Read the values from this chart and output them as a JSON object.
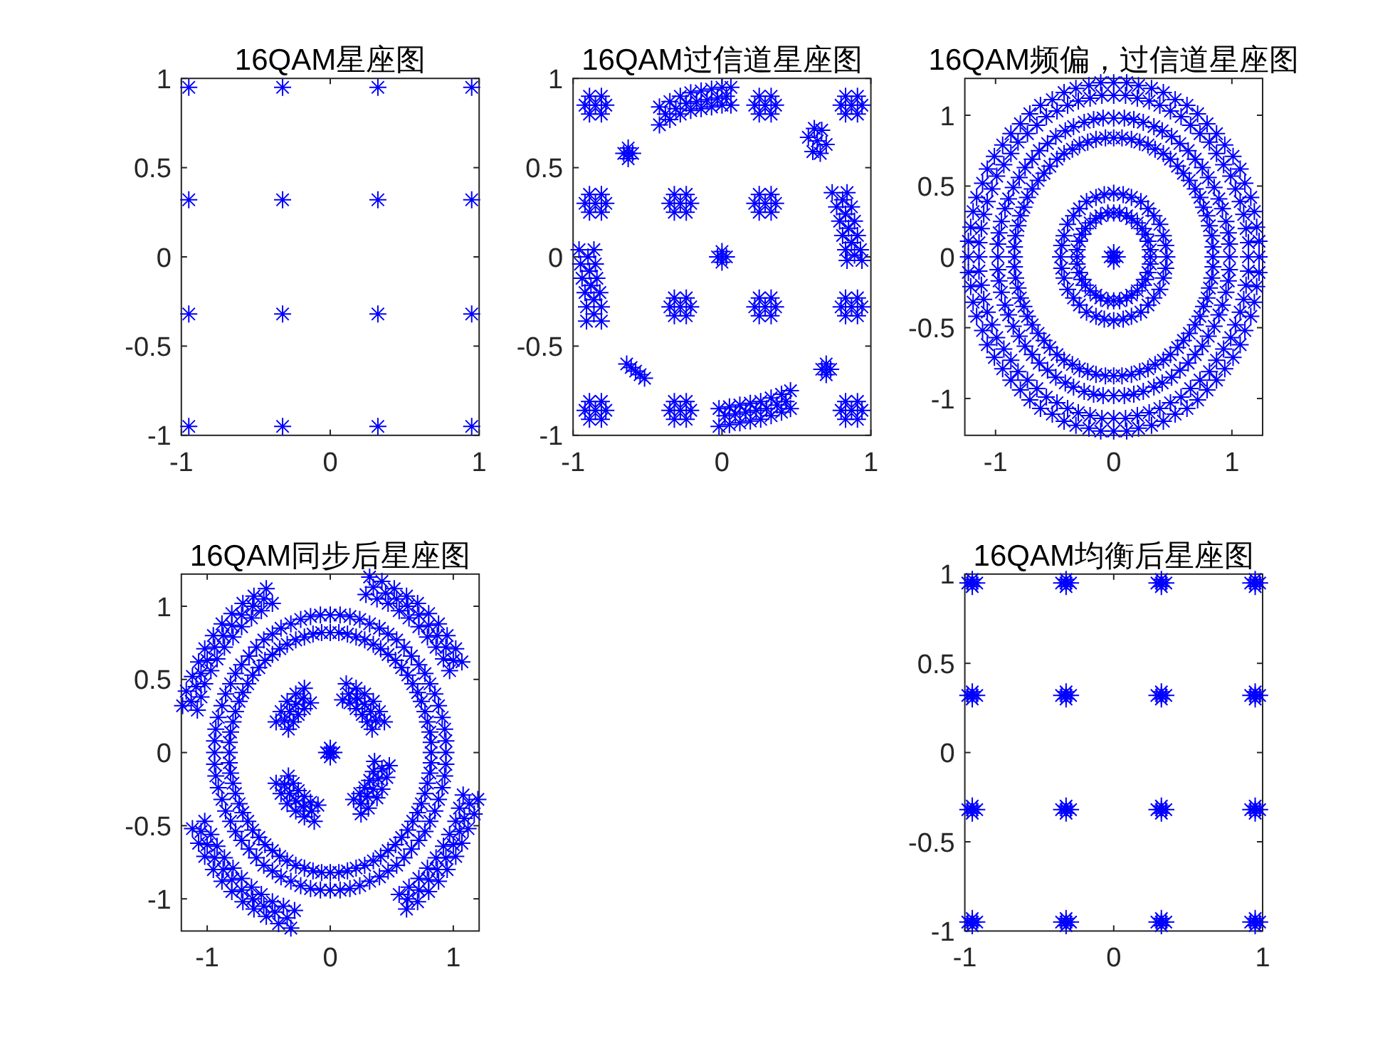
{
  "chart_data": [
    {
      "type": "scatter",
      "title": "16QAM星座图",
      "xlim": [
        -1,
        1
      ],
      "ylim": [
        -1,
        1
      ],
      "xticks": [
        -1,
        0,
        1
      ],
      "yticks": [
        -1,
        -0.5,
        0,
        0.5,
        1
      ],
      "marker": "cross",
      "series": [
        {
          "color": "#0000ff",
          "x": [
            -0.95,
            -0.32,
            0.32,
            0.95,
            -0.95,
            -0.32,
            0.32,
            0.95,
            -0.95,
            -0.32,
            0.32,
            0.95,
            -0.95,
            -0.32,
            0.32,
            0.95
          ],
          "values": [
            0.95,
            0.95,
            0.95,
            0.95,
            0.32,
            0.32,
            0.32,
            0.32,
            -0.32,
            -0.32,
            -0.32,
            -0.32,
            -0.95,
            -0.95,
            -0.95,
            -0.95
          ]
        }
      ]
    },
    {
      "type": "scatter",
      "title": "16QAM过信道星座图",
      "xlim": [
        -1,
        1
      ],
      "ylim": [
        -1,
        1
      ],
      "xticks": [
        -1,
        0,
        1
      ],
      "yticks": [
        -1,
        -0.5,
        0,
        0.5,
        1
      ],
      "marker": "cross",
      "series": [
        {
          "color": "#0000ff",
          "x": [
            -0.85,
            -0.78,
            -0.92,
            -0.81,
            -0.89,
            -0.81,
            -0.89,
            0.29,
            0.36,
            0.22,
            0.33,
            0.25,
            0.33,
            0.25,
            0.87,
            0.94,
            0.8,
            0.91,
            0.83,
            0.91,
            0.83,
            -0.85,
            -0.78,
            -0.92,
            -0.81,
            -0.89,
            -0.81,
            -0.89,
            -0.28,
            -0.21,
            -0.35,
            -0.24,
            -0.32,
            -0.24,
            -0.32,
            0.29,
            0.36,
            0.22,
            0.33,
            0.25,
            0.33,
            0.25,
            -0.28,
            -0.21,
            -0.35,
            -0.24,
            -0.32,
            -0.24,
            -0.32,
            0.29,
            0.36,
            0.22,
            0.33,
            0.25,
            0.33,
            0.25,
            0.87,
            0.94,
            0.8,
            0.91,
            0.83,
            0.91,
            0.83,
            -0.85,
            -0.78,
            -0.92,
            -0.81,
            -0.89,
            -0.81,
            -0.89,
            -0.28,
            -0.21,
            -0.35,
            -0.24,
            -0.32,
            -0.24,
            -0.32,
            0.87,
            0.94,
            0.8,
            0.91,
            0.83,
            0.91,
            0.83
          ],
          "values": [
            0.85,
            0.85,
            0.85,
            0.9,
            0.9,
            0.8,
            0.8,
            0.85,
            0.85,
            0.85,
            0.9,
            0.9,
            0.8,
            0.8,
            0.85,
            0.85,
            0.85,
            0.9,
            0.9,
            0.8,
            0.8,
            0.3,
            0.3,
            0.3,
            0.35,
            0.35,
            0.25,
            0.25,
            0.3,
            0.3,
            0.3,
            0.35,
            0.35,
            0.25,
            0.25,
            0.3,
            0.3,
            0.3,
            0.35,
            0.35,
            0.25,
            0.25,
            -0.28,
            -0.28,
            -0.28,
            -0.23,
            -0.23,
            -0.33,
            -0.33,
            -0.28,
            -0.28,
            -0.28,
            -0.23,
            -0.23,
            -0.33,
            -0.33,
            -0.28,
            -0.28,
            -0.28,
            -0.23,
            -0.23,
            -0.33,
            -0.33,
            -0.86,
            -0.86,
            -0.86,
            -0.81,
            -0.81,
            -0.91,
            -0.91,
            -0.86,
            -0.86,
            -0.86,
            -0.81,
            -0.81,
            -0.91,
            -0.91,
            -0.86,
            -0.86,
            -0.86,
            -0.81,
            -0.81,
            -0.91,
            -0.91
          ]
        },
        {
          "color": "#0000ff",
          "x": [
            -0.42,
            -0.42,
            -0.35,
            -0.35,
            -0.28,
            -0.28,
            -0.21,
            -0.21,
            -0.14,
            -0.14,
            -0.07,
            -0.07,
            0,
            0,
            0.06,
            0.06,
            -0.02,
            -0.02,
            0.05,
            0.05,
            0.12,
            0.12,
            0.19,
            0.19,
            0.26,
            0.26,
            0.33,
            0.33,
            0.4,
            0.4,
            0.46,
            0.46,
            0.74,
            0.84,
            0.77,
            0.87,
            0.79,
            0.89,
            0.81,
            0.91,
            0.83,
            0.93,
            0.84,
            0.94,
            -0.96,
            -0.86,
            -0.95,
            -0.85,
            -0.94,
            -0.84,
            -0.92,
            -0.82,
            -0.91,
            -0.81,
            -0.91,
            -0.81,
            0,
            0.03,
            -0.03,
            0,
            0,
            -0.63,
            -0.6,
            -0.66,
            -0.63,
            -0.63,
            0.64,
            0.58,
            0.7,
            0.62,
            0.67,
            0.61,
            0.66,
            -0.58,
            -0.61,
            -0.55,
            -0.64,
            -0.52,
            0.7,
            0.67,
            0.73,
            0.7,
            0.7
          ],
          "values": [
            0.74,
            0.84,
            0.77,
            0.87,
            0.8,
            0.9,
            0.82,
            0.92,
            0.83,
            0.93,
            0.84,
            0.94,
            0.85,
            0.95,
            0.85,
            0.95,
            -0.95,
            -0.85,
            -0.94,
            -0.84,
            -0.93,
            -0.83,
            -0.92,
            -0.82,
            -0.91,
            -0.81,
            -0.89,
            -0.79,
            -0.87,
            -0.77,
            -0.85,
            -0.75,
            0.36,
            0.36,
            0.28,
            0.28,
            0.2,
            0.2,
            0.12,
            0.12,
            0.04,
            0.04,
            -0.02,
            -0.02,
            0.04,
            0.04,
            -0.04,
            -0.04,
            -0.12,
            -0.12,
            -0.2,
            -0.2,
            -0.28,
            -0.28,
            -0.36,
            -0.36,
            0,
            0,
            0,
            0.03,
            -0.03,
            0.58,
            0.58,
            0.58,
            0.61,
            0.55,
            0.65,
            0.67,
            0.63,
            0.72,
            0.71,
            0.59,
            0.58,
            -0.64,
            -0.62,
            -0.66,
            -0.6,
            -0.68,
            -0.63,
            -0.63,
            -0.63,
            -0.6,
            -0.66
          ]
        },
        {
          "color": "#0000ff",
          "x": [
            -0.38,
            -0.31,
            -0.24,
            -0.17,
            -0.1,
            -0.03,
            0.03,
            0.02,
            0.09,
            0.16,
            0.23,
            0.3,
            0.37,
            0.43,
            0.81,
            0.83,
            0.85,
            0.87,
            0.89,
            -0.9,
            -0.89,
            -0.88,
            -0.86,
            -0.86
          ],
          "values": [
            0.8,
            0.83,
            0.86,
            0.87,
            0.88,
            0.89,
            0.9,
            -0.89,
            -0.88,
            -0.87,
            -0.86,
            -0.85,
            -0.83,
            -0.81,
            0.32,
            0.24,
            0.16,
            0.08,
            0.01,
            0,
            -0.08,
            -0.16,
            -0.24,
            -0.32
          ]
        }
      ]
    },
    {
      "type": "scatter",
      "title": "16QAM频偏，过信道星座图",
      "xlim": [
        -1.26,
        1.26
      ],
      "ylim": [
        -1.26,
        1.26
      ],
      "xticks": [
        -1,
        0,
        1
      ],
      "yticks": [
        -1,
        -0.5,
        0,
        0.5,
        1
      ],
      "marker": "cross",
      "series": [
        {
          "color": "#0000ff",
          "x": [
            0,
            0.03,
            -0.03,
            0,
            0,
            0.31,
            0.29,
            0.24,
            0.15,
            0.05,
            -0.05,
            -0.15,
            -0.24,
            -0.29,
            -0.31,
            -0.29,
            -0.24,
            -0.15,
            -0.05,
            0.05,
            0.15,
            0.24,
            0.29,
            0.44,
            0.39,
            0.29,
            0.15,
            0,
            -0.15,
            -0.29,
            -0.39,
            -0.44,
            -0.44,
            -0.39,
            -0.29,
            -0.15,
            0,
            0.15,
            0.29,
            0.39,
            0.44,
            0.31,
            0.27,
            0.2,
            0.11,
            0,
            -0.11,
            -0.2,
            -0.27,
            -0.31,
            -0.31,
            -0.27,
            -0.2,
            -0.11,
            0,
            0.11,
            0.2,
            0.27,
            0.31,
            0.45,
            0.42,
            0.34,
            0.23,
            0.08,
            -0.08,
            -0.23,
            -0.34,
            -0.42,
            -0.45,
            -0.42,
            -0.34,
            -0.23,
            -0.08,
            0.08,
            0.23,
            0.34,
            0.42
          ],
          "values": [
            0,
            0,
            0,
            0.03,
            -0.03,
            0,
            0.11,
            0.2,
            0.27,
            0.31,
            0.31,
            0.27,
            0.2,
            0.11,
            0,
            -0.11,
            -0.2,
            -0.27,
            -0.31,
            -0.31,
            -0.27,
            -0.2,
            -0.11,
            0.08,
            0.23,
            0.34,
            0.42,
            0.45,
            0.42,
            0.34,
            0.23,
            0.08,
            -0.08,
            -0.23,
            -0.34,
            -0.42,
            -0.45,
            -0.42,
            -0.34,
            -0.23,
            -0.08,
            0.05,
            0.16,
            0.24,
            0.29,
            0.31,
            0.29,
            0.24,
            0.16,
            0.05,
            -0.05,
            -0.16,
            -0.24,
            -0.29,
            -0.31,
            -0.29,
            -0.24,
            -0.16,
            -0.05,
            0,
            0.15,
            0.29,
            0.39,
            0.44,
            0.44,
            0.39,
            0.29,
            0.15,
            0,
            -0.15,
            -0.29,
            -0.39,
            -0.44,
            -0.44,
            -0.39,
            -0.29,
            -0.15
          ]
        },
        {
          "color": "#0000ff",
          "x": [
            0.84,
            0.83,
            0.79,
            0.73,
            0.64,
            0.54,
            0.42,
            0.29,
            0.15,
            0,
            -0.15,
            -0.29,
            -0.42,
            -0.54,
            -0.64,
            -0.73,
            -0.79,
            -0.83,
            -0.84,
            -0.83,
            -0.79,
            -0.73,
            -0.64,
            -0.54,
            -0.42,
            -0.29,
            -0.15,
            0,
            0.15,
            0.29,
            0.42,
            0.54,
            0.64,
            0.73,
            0.79,
            0.83,
            0.98,
            0.95,
            0.89,
            0.8,
            0.69,
            0.56,
            0.41,
            0.25,
            0.09,
            -0.09,
            -0.25,
            -0.41,
            -0.56,
            -0.69,
            -0.8,
            -0.89,
            -0.95,
            -0.98,
            -0.98,
            -0.95,
            -0.89,
            -0.8,
            -0.69,
            -0.56,
            -0.41,
            -0.25,
            -0.09,
            0.09,
            0.25,
            0.41,
            0.56,
            0.69,
            0.8,
            0.89,
            0.95,
            0.98
          ],
          "values": [
            0,
            0.15,
            0.29,
            0.42,
            0.54,
            0.64,
            0.73,
            0.79,
            0.83,
            0.84,
            0.83,
            0.79,
            0.73,
            0.64,
            0.54,
            0.42,
            0.29,
            0.15,
            0,
            -0.15,
            -0.29,
            -0.42,
            -0.54,
            -0.64,
            -0.73,
            -0.79,
            -0.83,
            -0.84,
            -0.83,
            -0.79,
            -0.73,
            -0.64,
            -0.54,
            -0.42,
            -0.29,
            -0.15,
            0.09,
            0.25,
            0.41,
            0.56,
            0.69,
            0.8,
            0.89,
            0.95,
            0.98,
            0.98,
            0.95,
            0.89,
            0.8,
            0.69,
            0.56,
            0.41,
            0.25,
            0.09,
            -0.09,
            -0.25,
            -0.41,
            -0.56,
            -0.69,
            -0.8,
            -0.89,
            -0.95,
            -0.98,
            -0.98,
            -0.95,
            -0.89,
            -0.8,
            -0.69,
            -0.56,
            -0.41,
            -0.25,
            -0.09
          ]
        },
        {
          "color": "#0000ff",
          "x": [
            0.84,
            0.81,
            0.76,
            0.69,
            0.59,
            0.48,
            0.35,
            0.22,
            0.07,
            -0.07,
            -0.22,
            -0.35,
            -0.48,
            -0.59,
            -0.69,
            -0.76,
            -0.81,
            -0.84,
            -0.84,
            -0.81,
            -0.76,
            -0.69,
            -0.59,
            -0.48,
            -0.35,
            -0.22,
            -0.07,
            0.07,
            0.22,
            0.35,
            0.48,
            0.59,
            0.69,
            0.76,
            0.81,
            0.84,
            0.98,
            0.97,
            0.92,
            0.85,
            0.75,
            0.63,
            0.49,
            0.34,
            0.17,
            0,
            -0.17,
            -0.34,
            -0.49,
            -0.63,
            -0.75,
            -0.85,
            -0.92,
            -0.97,
            -0.98,
            -0.97,
            -0.92,
            -0.85,
            -0.75,
            -0.63,
            -0.49,
            -0.34,
            -0.17,
            0,
            0.17,
            0.34,
            0.49,
            0.63,
            0.75,
            0.85,
            0.92,
            0.97
          ],
          "values": [
            0.07,
            0.22,
            0.35,
            0.48,
            0.59,
            0.69,
            0.76,
            0.81,
            0.84,
            0.84,
            0.81,
            0.76,
            0.69,
            0.59,
            0.48,
            0.35,
            0.22,
            0.07,
            -0.07,
            -0.22,
            -0.35,
            -0.48,
            -0.59,
            -0.69,
            -0.76,
            -0.81,
            -0.84,
            -0.84,
            -0.81,
            -0.76,
            -0.69,
            -0.59,
            -0.48,
            -0.35,
            -0.22,
            -0.07,
            0,
            0.17,
            0.34,
            0.49,
            0.63,
            0.75,
            0.85,
            0.92,
            0.97,
            0.98,
            0.97,
            0.92,
            0.85,
            0.75,
            0.63,
            0.49,
            0.34,
            0.17,
            0,
            -0.17,
            -0.34,
            -0.49,
            -0.63,
            -0.75,
            -0.85,
            -0.92,
            -0.97,
            -0.98,
            -0.97,
            -0.92,
            -0.85,
            -0.75,
            -0.63,
            -0.49,
            -0.34,
            -0.17
          ]
        },
        {
          "color": "#0000ff",
          "x": [
            1.14,
            1.12,
            1.07,
            0.99,
            0.87,
            0.73,
            0.57,
            0.39,
            0.2,
            0,
            -0.2,
            -0.39,
            -0.57,
            -0.73,
            -0.87,
            -0.99,
            -1.07,
            -1.12,
            -1.14,
            -1.12,
            -1.07,
            -0.99,
            -0.87,
            -0.73,
            -0.57,
            -0.39,
            -0.2,
            0,
            0.2,
            0.39,
            0.57,
            0.73,
            0.87,
            0.99,
            1.07,
            1.12,
            1.23,
            1.19,
            1.11,
            1.01,
            0.87,
            0.71,
            0.52,
            0.32,
            0.11,
            -0.11,
            -0.32,
            -0.52,
            -0.71,
            -0.87,
            -1.01,
            -1.11,
            -1.19,
            -1.23,
            -1.23,
            -1.19,
            -1.11,
            -1.01,
            -0.87,
            -0.71,
            -0.52,
            -0.32,
            -0.11,
            0.11,
            0.32,
            0.52,
            0.71,
            0.87,
            1.01,
            1.11,
            1.19,
            1.23
          ],
          "values": [
            0,
            0.2,
            0.39,
            0.57,
            0.73,
            0.87,
            0.99,
            1.07,
            1.12,
            1.14,
            1.12,
            1.07,
            0.99,
            0.87,
            0.73,
            0.57,
            0.39,
            0.2,
            0,
            -0.2,
            -0.39,
            -0.57,
            -0.73,
            -0.87,
            -0.99,
            -1.07,
            -1.12,
            -1.14,
            -1.12,
            -1.07,
            -0.99,
            -0.87,
            -0.73,
            -0.57,
            -0.39,
            -0.2,
            0.11,
            0.32,
            0.52,
            0.71,
            0.87,
            1.01,
            1.11,
            1.19,
            1.23,
            1.23,
            1.19,
            1.11,
            1.01,
            0.87,
            0.71,
            0.52,
            0.32,
            0.11,
            -0.11,
            -0.32,
            -0.52,
            -0.71,
            -0.87,
            -1.01,
            -1.11,
            -1.19,
            -1.23,
            -1.23,
            -1.19,
            -1.11,
            -1.01,
            -0.87,
            -0.71,
            -0.52,
            -0.32,
            -0.11
          ]
        },
        {
          "color": "#0000ff",
          "x": [
            1.14,
            1.1,
            1.03,
            0.93,
            0.81,
            0.65,
            0.48,
            0.3,
            0.1,
            -0.1,
            -0.3,
            -0.48,
            -0.65,
            -0.81,
            -0.93,
            -1.03,
            -1.1,
            -1.14,
            -1.14,
            -1.1,
            -1.03,
            -0.93,
            -0.81,
            -0.65,
            -0.48,
            -0.3,
            -0.1,
            0.1,
            0.3,
            0.48,
            0.65,
            0.81,
            0.93,
            1.03,
            1.1,
            1.14,
            1.23,
            1.21,
            1.16,
            1.07,
            0.94,
            0.79,
            0.62,
            0.42,
            0.21,
            0,
            -0.21,
            -0.42,
            -0.62,
            -0.79,
            -0.94,
            -1.07,
            -1.16,
            -1.21,
            -1.23,
            -1.21,
            -1.16,
            -1.07,
            -0.94,
            -0.79,
            -0.62,
            -0.42,
            -0.21,
            0,
            0.21,
            0.42,
            0.62,
            0.79,
            0.94,
            1.07,
            1.16,
            1.21
          ],
          "values": [
            0.1,
            0.3,
            0.48,
            0.65,
            0.81,
            0.93,
            1.03,
            1.1,
            1.14,
            1.14,
            1.1,
            1.03,
            0.93,
            0.81,
            0.65,
            0.48,
            0.3,
            0.1,
            -0.1,
            -0.3,
            -0.48,
            -0.65,
            -0.81,
            -0.93,
            -1.03,
            -1.1,
            -1.14,
            -1.14,
            -1.1,
            -1.03,
            -0.93,
            -0.81,
            -0.65,
            -0.48,
            -0.3,
            -0.1,
            0,
            0.21,
            0.42,
            0.62,
            0.79,
            0.94,
            1.07,
            1.16,
            1.21,
            1.23,
            1.21,
            1.16,
            1.07,
            0.94,
            0.79,
            0.62,
            0.42,
            0.21,
            0,
            -0.21,
            -0.42,
            -0.62,
            -0.79,
            -0.94,
            -1.07,
            -1.16,
            -1.21,
            -1.23,
            -1.21,
            -1.16,
            -1.07,
            -0.94,
            -0.79,
            -0.62,
            -0.42,
            -0.21
          ]
        }
      ]
    },
    {
      "type": "scatter",
      "title": "16QAM同步后星座图",
      "xlim": [
        -1.21,
        1.21
      ],
      "ylim": [
        -1.22,
        1.22
      ],
      "xticks": [
        -1,
        0,
        1
      ],
      "yticks": [
        -1,
        -0.5,
        0,
        0.5,
        1
      ],
      "marker": "cross",
      "series": [
        {
          "color": "#0000ff",
          "x": [
            0,
            0.03,
            -0.03,
            0,
            0,
            -0.16,
            -0.21,
            -0.21,
            -0.28,
            -0.26,
            -0.35,
            -0.3,
            -0.4,
            -0.34,
            -0.44,
            0.34,
            0.44,
            0.3,
            0.4,
            0.26,
            0.35,
            0.21,
            0.28,
            0.16,
            0.21,
            0.1,
            0.13,
            0.36,
            0.48,
            0.35,
            0.46,
            0.32,
            0.42,
            0.28,
            0.38,
            0.24,
            0.31,
            0.19,
            0.25,
            -0.34,
            -0.44,
            -0.3,
            -0.4,
            -0.26,
            -0.35,
            -0.21,
            -0.28,
            -0.16,
            -0.21,
            -0.1,
            -0.13,
            -0.22,
            -0.28,
            -0.33,
            -0.37,
            0.37,
            0.33,
            0.28,
            0.22,
            0.15,
            0.42,
            0.39,
            0.35,
            0.3,
            0.25,
            -0.37,
            -0.33,
            -0.28,
            -0.22,
            -0.15
          ],
          "values": [
            0,
            0,
            0,
            0.03,
            -0.03,
            0.34,
            0.44,
            0.3,
            0.4,
            0.26,
            0.35,
            0.21,
            0.28,
            0.16,
            0.21,
            0.16,
            0.21,
            0.21,
            0.28,
            0.26,
            0.35,
            0.3,
            0.4,
            0.34,
            0.44,
            0.36,
            0.47,
            -0.06,
            -0.09,
            -0.13,
            -0.17,
            -0.19,
            -0.25,
            -0.24,
            -0.31,
            -0.28,
            -0.38,
            -0.32,
            -0.42,
            -0.16,
            -0.21,
            -0.21,
            -0.28,
            -0.26,
            -0.35,
            -0.3,
            -0.4,
            -0.34,
            -0.44,
            -0.36,
            -0.47,
            0.37,
            0.33,
            0.28,
            0.22,
            0.22,
            0.28,
            0.33,
            0.37,
            0.4,
            -0.11,
            -0.18,
            -0.25,
            -0.3,
            -0.35,
            -0.22,
            -0.28,
            -0.33,
            -0.37,
            -0.4
          ]
        },
        {
          "color": "#0000ff",
          "x": [
            0.82,
            0.81,
            0.77,
            0.71,
            0.63,
            0.53,
            0.41,
            0.28,
            0.14,
            0,
            -0.14,
            -0.28,
            -0.41,
            -0.53,
            -0.63,
            -0.71,
            -0.77,
            -0.81,
            -0.82,
            -0.81,
            -0.77,
            -0.71,
            -0.63,
            -0.53,
            -0.41,
            -0.28,
            -0.14,
            0,
            0.14,
            0.28,
            0.41,
            0.53,
            0.63,
            0.71,
            0.77,
            0.81,
            0.94,
            0.91,
            0.85,
            0.77,
            0.66,
            0.54,
            0.4,
            0.24,
            0.08,
            -0.08,
            -0.24,
            -0.4,
            -0.54,
            -0.66,
            -0.77,
            -0.85,
            -0.91,
            -0.94,
            -0.94,
            -0.91,
            -0.85,
            -0.77,
            -0.66,
            -0.54,
            -0.4,
            -0.24,
            -0.08,
            0.08,
            0.24,
            0.4,
            0.54,
            0.66,
            0.77,
            0.85,
            0.91,
            0.94
          ],
          "values": [
            0,
            0.14,
            0.28,
            0.41,
            0.53,
            0.63,
            0.71,
            0.77,
            0.81,
            0.82,
            0.81,
            0.77,
            0.71,
            0.63,
            0.53,
            0.41,
            0.28,
            0.14,
            0,
            -0.14,
            -0.28,
            -0.41,
            -0.53,
            -0.63,
            -0.71,
            -0.77,
            -0.81,
            -0.82,
            -0.81,
            -0.77,
            -0.71,
            -0.63,
            -0.53,
            -0.41,
            -0.28,
            -0.14,
            0.08,
            0.24,
            0.4,
            0.54,
            0.66,
            0.77,
            0.85,
            0.91,
            0.94,
            0.94,
            0.91,
            0.85,
            0.77,
            0.66,
            0.54,
            0.4,
            0.24,
            0.08,
            -0.08,
            -0.24,
            -0.4,
            -0.54,
            -0.66,
            -0.77,
            -0.85,
            -0.91,
            -0.94,
            -0.94,
            -0.91,
            -0.85,
            -0.77,
            -0.66,
            -0.54,
            -0.4,
            -0.24,
            -0.08
          ]
        },
        {
          "color": "#0000ff",
          "x": [
            0.82,
            0.79,
            0.74,
            0.67,
            0.58,
            0.47,
            0.35,
            0.21,
            0.07,
            -0.07,
            -0.21,
            -0.35,
            -0.47,
            -0.58,
            -0.67,
            -0.74,
            -0.79,
            -0.82,
            -0.82,
            -0.79,
            -0.74,
            -0.67,
            -0.58,
            -0.47,
            -0.35,
            -0.21,
            -0.07,
            0.07,
            0.21,
            0.35,
            0.47,
            0.58,
            0.67,
            0.74,
            0.79,
            0.82,
            0.94,
            0.93,
            0.88,
            0.81,
            0.72,
            0.6,
            0.47,
            0.32,
            0.16,
            0,
            -0.16,
            -0.32,
            -0.47,
            -0.6,
            -0.72,
            -0.81,
            -0.88,
            -0.93,
            -0.94,
            -0.93,
            -0.88,
            -0.81,
            -0.72,
            -0.6,
            -0.47,
            -0.32,
            -0.16,
            0,
            0.16,
            0.32,
            0.47,
            0.6,
            0.72,
            0.81,
            0.88,
            0.93
          ],
          "values": [
            0.07,
            0.21,
            0.35,
            0.47,
            0.58,
            0.67,
            0.74,
            0.79,
            0.82,
            0.82,
            0.79,
            0.74,
            0.67,
            0.58,
            0.47,
            0.35,
            0.21,
            0.07,
            -0.07,
            -0.21,
            -0.35,
            -0.47,
            -0.58,
            -0.67,
            -0.74,
            -0.79,
            -0.82,
            -0.82,
            -0.79,
            -0.74,
            -0.67,
            -0.58,
            -0.47,
            -0.35,
            -0.21,
            -0.07,
            0,
            0.16,
            0.32,
            0.47,
            0.6,
            0.72,
            0.81,
            0.88,
            0.93,
            0.94,
            0.93,
            0.88,
            0.81,
            0.72,
            0.6,
            0.47,
            0.32,
            0.16,
            0,
            -0.16,
            -0.32,
            -0.47,
            -0.6,
            -0.72,
            -0.81,
            -0.88,
            -0.93,
            -0.94,
            -0.93,
            -0.88,
            -0.81,
            -0.72,
            -0.6,
            -0.47,
            -0.32,
            -0.16
          ]
        },
        {
          "color": "#0000ff",
          "x": [
            -0.47,
            -0.52,
            -0.56,
            -0.62,
            -0.64,
            -0.71,
            -0.72,
            -0.8,
            -0.79,
            -0.88,
            -0.86,
            -0.95,
            -0.92,
            -1.02,
            -0.97,
            -1.07,
            -1.02,
            -1.12,
            -1.05,
            -1.17,
            -1.08,
            -1.2,
            0.97,
            1.07,
            0.92,
            1.02,
            0.86,
            0.95,
            0.79,
            0.88,
            0.72,
            0.8,
            0.64,
            0.71,
            0.56,
            0.62,
            0.47,
            0.52,
            0.38,
            0.42,
            0.29,
            0.32,
            1.08,
            1.2,
            1.05,
            1.17,
            1.02,
            1.12,
            0.97,
            1.07,
            0.92,
            1.02,
            0.86,
            0.95,
            0.79,
            0.88,
            0.72,
            0.8,
            0.64,
            0.71,
            0.56,
            0.62,
            -1.02,
            -1.12,
            -0.97,
            -1.07,
            -0.92,
            -1.02,
            -0.86,
            -0.95,
            -0.79,
            -0.88,
            -0.72,
            -0.8,
            -0.64,
            -0.71,
            -0.56,
            -0.62,
            -0.47,
            -0.52,
            -0.38,
            -0.42,
            -0.29,
            -0.32
          ],
          "values": [
            1.02,
            1.12,
            0.97,
            1.07,
            0.92,
            1.02,
            0.86,
            0.95,
            0.79,
            0.88,
            0.72,
            0.8,
            0.64,
            0.71,
            0.56,
            0.62,
            0.47,
            0.52,
            0.38,
            0.42,
            0.29,
            0.32,
            0.56,
            0.62,
            0.64,
            0.71,
            0.72,
            0.8,
            0.79,
            0.88,
            0.86,
            0.95,
            0.92,
            1.02,
            0.97,
            1.07,
            1.02,
            1.12,
            1.05,
            1.17,
            1.08,
            1.2,
            -0.29,
            -0.32,
            -0.38,
            -0.42,
            -0.47,
            -0.52,
            -0.56,
            -0.62,
            -0.64,
            -0.71,
            -0.72,
            -0.8,
            -0.79,
            -0.88,
            -0.86,
            -0.95,
            -0.92,
            -1.02,
            -0.97,
            -1.07,
            -0.47,
            -0.52,
            -0.56,
            -0.62,
            -0.64,
            -0.71,
            -0.72,
            -0.8,
            -0.79,
            -0.88,
            -0.86,
            -0.95,
            -0.92,
            -1.02,
            -0.97,
            -1.07,
            -1.02,
            -1.12,
            -1.05,
            -1.17,
            -1.08,
            -1.2
          ]
        },
        {
          "color": "#0000ff",
          "x": [
            -0.54,
            -0.63,
            -0.72,
            -0.8,
            -0.87,
            -0.94,
            -1.0,
            -1.05,
            -1.09,
            -1.13,
            1.0,
            0.94,
            0.87,
            0.8,
            0.72,
            0.63,
            0.54,
            0.45,
            0.35,
            1.13,
            1.09,
            1.05,
            1.0,
            0.94,
            0.87,
            0.8,
            0.72,
            0.63,
            -1.05,
            -1.0,
            -0.94,
            -0.87,
            -0.8,
            -0.72,
            -0.63,
            -0.54,
            -0.45,
            -0.35
          ],
          "values": [
            1.05,
            1.0,
            0.94,
            0.87,
            0.8,
            0.72,
            0.63,
            0.54,
            0.45,
            0.35,
            0.63,
            0.72,
            0.8,
            0.87,
            0.94,
            1.0,
            1.05,
            1.09,
            1.13,
            -0.35,
            -0.45,
            -0.54,
            -0.63,
            -0.72,
            -0.8,
            -0.87,
            -0.94,
            -1.0,
            -0.54,
            -0.63,
            -0.72,
            -0.8,
            -0.87,
            -0.94,
            -1.0,
            -1.05,
            -1.09,
            -1.13
          ]
        }
      ]
    },
    {
      "type": "scatter",
      "title": "16QAM均衡后星座图",
      "xlim": [
        -1,
        1
      ],
      "ylim": [
        -1,
        1
      ],
      "xticks": [
        -1,
        0,
        1
      ],
      "yticks": [
        -1,
        -0.5,
        0,
        0.5,
        1
      ],
      "marker": "cross",
      "series": [
        {
          "color": "#0000ff",
          "x": [
            -0.95,
            -0.92,
            -0.98,
            -0.95,
            -0.95,
            -0.32,
            -0.29,
            -0.35,
            -0.32,
            -0.32,
            0.32,
            0.35,
            0.29,
            0.32,
            0.32,
            0.95,
            0.98,
            0.92,
            0.95,
            0.95,
            -0.95,
            -0.92,
            -0.98,
            -0.95,
            -0.95,
            -0.32,
            -0.29,
            -0.35,
            -0.32,
            -0.32,
            0.32,
            0.35,
            0.29,
            0.32,
            0.32,
            0.95,
            0.98,
            0.92,
            0.95,
            0.95,
            -0.95,
            -0.92,
            -0.98,
            -0.95,
            -0.95,
            -0.32,
            -0.29,
            -0.35,
            -0.32,
            -0.32,
            0.32,
            0.35,
            0.29,
            0.32,
            0.32,
            0.95,
            0.98,
            0.92,
            0.95,
            0.95,
            -0.95,
            -0.92,
            -0.98,
            -0.95,
            -0.95,
            -0.32,
            -0.29,
            -0.35,
            -0.32,
            -0.32,
            0.32,
            0.35,
            0.29,
            0.32,
            0.32,
            0.95,
            0.98,
            0.92,
            0.95,
            0.95
          ],
          "values": [
            0.95,
            0.95,
            0.95,
            0.97,
            0.93,
            0.95,
            0.95,
            0.95,
            0.97,
            0.93,
            0.95,
            0.95,
            0.95,
            0.97,
            0.93,
            0.95,
            0.95,
            0.95,
            0.97,
            0.93,
            0.32,
            0.32,
            0.32,
            0.34,
            0.3,
            0.32,
            0.32,
            0.32,
            0.34,
            0.3,
            0.32,
            0.32,
            0.32,
            0.34,
            0.3,
            0.32,
            0.32,
            0.32,
            0.34,
            0.3,
            -0.32,
            -0.32,
            -0.32,
            -0.3,
            -0.34,
            -0.32,
            -0.32,
            -0.32,
            -0.3,
            -0.34,
            -0.32,
            -0.32,
            -0.32,
            -0.3,
            -0.34,
            -0.32,
            -0.32,
            -0.32,
            -0.3,
            -0.34,
            -0.95,
            -0.95,
            -0.95,
            -0.93,
            -0.97,
            -0.95,
            -0.95,
            -0.95,
            -0.93,
            -0.97,
            -0.95,
            -0.95,
            -0.95,
            -0.93,
            -0.97,
            -0.95,
            -0.95,
            -0.95,
            -0.93,
            -0.97
          ]
        }
      ]
    }
  ]
}
